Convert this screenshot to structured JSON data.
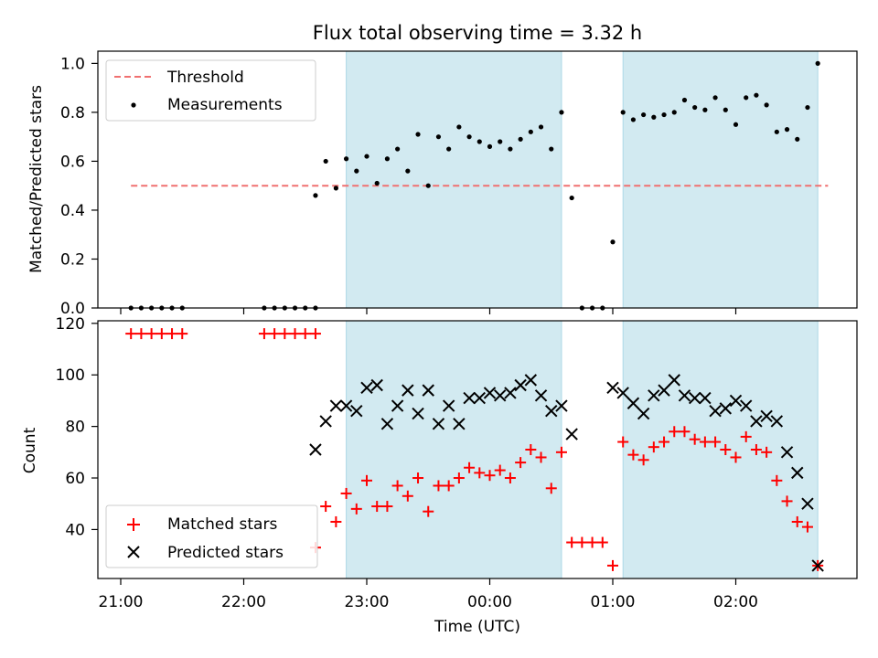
{
  "title": "Flux total observing time = 3.32 h",
  "shaded_intervals": [
    [
      "22:50",
      "00:35"
    ],
    [
      "01:05",
      "02:40"
    ]
  ],
  "colors": {
    "shade": "#add8e6",
    "threshold": "#f07070",
    "measurements": "#000000",
    "matched": "#ff0000",
    "predicted": "#000000"
  },
  "chart_data": [
    {
      "type": "scatter",
      "ylabel": "Matched/Predicted stars",
      "ylim": [
        0,
        1.05
      ],
      "yticks": [
        "0.0",
        "0.2",
        "0.4",
        "0.6",
        "0.8",
        "1.0"
      ],
      "legend": {
        "placement": "top-left",
        "entries": [
          "Threshold",
          "Measurements"
        ]
      },
      "threshold": {
        "name": "Threshold",
        "value": 0.5,
        "x_start": "21:05",
        "x_end": "02:45"
      },
      "series": [
        {
          "name": "Measurements",
          "points": [
            [
              "21:05",
              0.0
            ],
            [
              "21:10",
              0.0
            ],
            [
              "21:15",
              0.0
            ],
            [
              "21:20",
              0.0
            ],
            [
              "21:25",
              0.0
            ],
            [
              "21:30",
              0.0
            ],
            [
              "22:10",
              0.0
            ],
            [
              "22:15",
              0.0
            ],
            [
              "22:20",
              0.0
            ],
            [
              "22:25",
              0.0
            ],
            [
              "22:30",
              0.0
            ],
            [
              "22:35",
              0.0
            ],
            [
              "22:35",
              0.46
            ],
            [
              "22:40",
              0.6
            ],
            [
              "22:45",
              0.49
            ],
            [
              "22:50",
              0.61
            ],
            [
              "22:55",
              0.56
            ],
            [
              "23:00",
              0.62
            ],
            [
              "23:05",
              0.51
            ],
            [
              "23:10",
              0.61
            ],
            [
              "23:15",
              0.65
            ],
            [
              "23:20",
              0.56
            ],
            [
              "23:25",
              0.71
            ],
            [
              "23:30",
              0.5
            ],
            [
              "23:35",
              0.7
            ],
            [
              "23:40",
              0.65
            ],
            [
              "23:45",
              0.74
            ],
            [
              "23:50",
              0.7
            ],
            [
              "23:55",
              0.68
            ],
            [
              "00:00",
              0.66
            ],
            [
              "00:05",
              0.68
            ],
            [
              "00:10",
              0.65
            ],
            [
              "00:15",
              0.69
            ],
            [
              "00:20",
              0.72
            ],
            [
              "00:25",
              0.74
            ],
            [
              "00:30",
              0.65
            ],
            [
              "00:35",
              0.8
            ],
            [
              "00:40",
              0.45
            ],
            [
              "00:45",
              0.0
            ],
            [
              "00:50",
              0.0
            ],
            [
              "00:55",
              0.0
            ],
            [
              "01:00",
              0.27
            ],
            [
              "01:05",
              0.8
            ],
            [
              "01:10",
              0.77
            ],
            [
              "01:15",
              0.79
            ],
            [
              "01:20",
              0.78
            ],
            [
              "01:25",
              0.79
            ],
            [
              "01:30",
              0.8
            ],
            [
              "01:35",
              0.85
            ],
            [
              "01:40",
              0.82
            ],
            [
              "01:45",
              0.81
            ],
            [
              "01:50",
              0.86
            ],
            [
              "01:55",
              0.81
            ],
            [
              "02:00",
              0.75
            ],
            [
              "02:05",
              0.86
            ],
            [
              "02:10",
              0.87
            ],
            [
              "02:15",
              0.83
            ],
            [
              "02:20",
              0.72
            ],
            [
              "02:25",
              0.73
            ],
            [
              "02:30",
              0.69
            ],
            [
              "02:35",
              0.82
            ],
            [
              "02:40",
              1.0
            ]
          ]
        }
      ]
    },
    {
      "type": "scatter",
      "xlabel": "Time (UTC)",
      "ylabel": "Count",
      "ylim": [
        21,
        121
      ],
      "yticks": [
        "40",
        "60",
        "80",
        "100",
        "120"
      ],
      "xticks": [
        "21:00",
        "22:00",
        "23:00",
        "00:00",
        "01:00",
        "02:00"
      ],
      "legend": {
        "placement": "bottom-left",
        "entries": [
          "Matched stars",
          "Predicted stars"
        ]
      },
      "series": [
        {
          "name": "Matched stars",
          "points": [
            [
              "21:05",
              116
            ],
            [
              "21:10",
              116
            ],
            [
              "21:15",
              116
            ],
            [
              "21:20",
              116
            ],
            [
              "21:25",
              116
            ],
            [
              "21:30",
              116
            ],
            [
              "22:10",
              116
            ],
            [
              "22:15",
              116
            ],
            [
              "22:20",
              116
            ],
            [
              "22:25",
              116
            ],
            [
              "22:30",
              116
            ],
            [
              "22:35",
              116
            ],
            [
              "22:35",
              33
            ],
            [
              "22:40",
              49
            ],
            [
              "22:45",
              43
            ],
            [
              "22:50",
              54
            ],
            [
              "22:55",
              48
            ],
            [
              "23:00",
              59
            ],
            [
              "23:05",
              49
            ],
            [
              "23:10",
              49
            ],
            [
              "23:15",
              57
            ],
            [
              "23:20",
              53
            ],
            [
              "23:25",
              60
            ],
            [
              "23:30",
              47
            ],
            [
              "23:35",
              57
            ],
            [
              "23:40",
              57
            ],
            [
              "23:45",
              60
            ],
            [
              "23:50",
              64
            ],
            [
              "23:55",
              62
            ],
            [
              "00:00",
              61
            ],
            [
              "00:05",
              63
            ],
            [
              "00:10",
              60
            ],
            [
              "00:15",
              66
            ],
            [
              "00:20",
              71
            ],
            [
              "00:25",
              68
            ],
            [
              "00:30",
              56
            ],
            [
              "00:35",
              70
            ],
            [
              "00:40",
              35
            ],
            [
              "00:45",
              35
            ],
            [
              "00:50",
              35
            ],
            [
              "00:55",
              35
            ],
            [
              "01:00",
              26
            ],
            [
              "01:05",
              74
            ],
            [
              "01:10",
              69
            ],
            [
              "01:15",
              67
            ],
            [
              "01:20",
              72
            ],
            [
              "01:25",
              74
            ],
            [
              "01:30",
              78
            ],
            [
              "01:35",
              78
            ],
            [
              "01:40",
              75
            ],
            [
              "01:45",
              74
            ],
            [
              "01:50",
              74
            ],
            [
              "01:55",
              71
            ],
            [
              "02:00",
              68
            ],
            [
              "02:05",
              76
            ],
            [
              "02:10",
              71
            ],
            [
              "02:15",
              70
            ],
            [
              "02:20",
              59
            ],
            [
              "02:25",
              51
            ],
            [
              "02:30",
              43
            ],
            [
              "02:35",
              41
            ],
            [
              "02:40",
              26
            ]
          ]
        },
        {
          "name": "Predicted stars",
          "points": [
            [
              "22:35",
              71
            ],
            [
              "22:40",
              82
            ],
            [
              "22:45",
              88
            ],
            [
              "22:50",
              88
            ],
            [
              "22:55",
              86
            ],
            [
              "23:00",
              95
            ],
            [
              "23:05",
              96
            ],
            [
              "23:10",
              81
            ],
            [
              "23:15",
              88
            ],
            [
              "23:20",
              94
            ],
            [
              "23:25",
              85
            ],
            [
              "23:30",
              94
            ],
            [
              "23:35",
              81
            ],
            [
              "23:40",
              88
            ],
            [
              "23:45",
              81
            ],
            [
              "23:50",
              91
            ],
            [
              "23:55",
              91
            ],
            [
              "00:00",
              93
            ],
            [
              "00:05",
              92
            ],
            [
              "00:10",
              93
            ],
            [
              "00:15",
              96
            ],
            [
              "00:20",
              98
            ],
            [
              "00:25",
              92
            ],
            [
              "00:30",
              86
            ],
            [
              "00:35",
              88
            ],
            [
              "00:40",
              77
            ],
            [
              "01:00",
              95
            ],
            [
              "01:05",
              93
            ],
            [
              "01:10",
              89
            ],
            [
              "01:15",
              85
            ],
            [
              "01:20",
              92
            ],
            [
              "01:25",
              94
            ],
            [
              "01:30",
              98
            ],
            [
              "01:35",
              92
            ],
            [
              "01:40",
              91
            ],
            [
              "01:45",
              91
            ],
            [
              "01:50",
              86
            ],
            [
              "01:55",
              87
            ],
            [
              "02:00",
              90
            ],
            [
              "02:05",
              88
            ],
            [
              "02:10",
              82
            ],
            [
              "02:15",
              84
            ],
            [
              "02:20",
              82
            ],
            [
              "02:25",
              70
            ],
            [
              "02:30",
              62
            ],
            [
              "02:35",
              50
            ],
            [
              "02:40",
              26
            ]
          ]
        }
      ]
    }
  ]
}
